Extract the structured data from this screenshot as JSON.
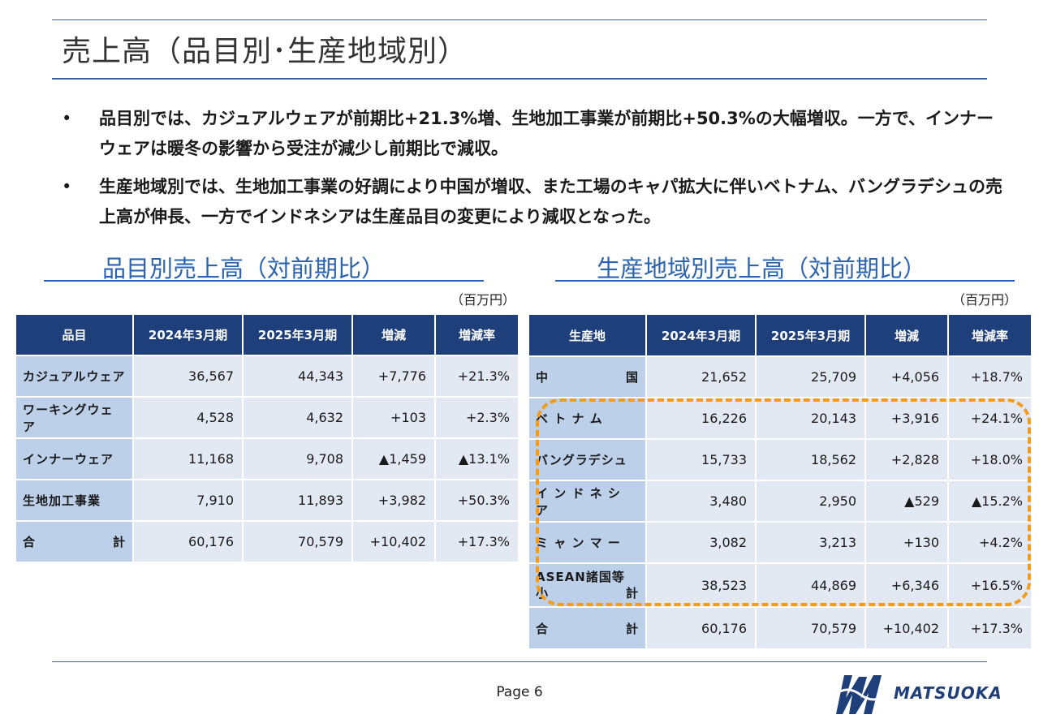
{
  "title": "売上高（品目別･生産地域別）",
  "bullets": [
    "品目別では、カジュアルウェアが前期比+21.3%増、生地加工事業が前期比+50.3%の大幅増収。一方で、インナーウェアは暖冬の影響から受注が減少し前期比で減収。",
    "生産地域別では、生地加工事業の好調により中国が増収、また工場のキャパ拡大に伴いベトナム、バングラデシュの売上高が伸長、一方でインドネシアは生産品目の変更により減収となった。"
  ],
  "bullet_mark": "•",
  "left": {
    "title": "品目別売上高（対前期比）",
    "unit": "（百万円）",
    "headers": [
      "品目",
      "2024年3月期",
      "2025年3月期",
      "増減",
      "増減率"
    ],
    "rows": [
      {
        "label": "カジュアルウェア",
        "v1": "36,567",
        "v2": "44,343",
        "diff": "+7,776",
        "rate": "+21.3%"
      },
      {
        "label": "ワーキングウェア",
        "v1": "4,528",
        "v2": "4,632",
        "diff": "+103",
        "rate": "+2.3%"
      },
      {
        "label": "インナーウェア",
        "v1": "11,168",
        "v2": "9,708",
        "diff": "▲1,459",
        "rate": "▲13.1%"
      },
      {
        "label": "生地加工事業",
        "v1": "7,910",
        "v2": "11,893",
        "diff": "+3,982",
        "rate": "+50.3%"
      }
    ],
    "total": {
      "label_a": "合",
      "label_b": "計",
      "v1": "60,176",
      "v2": "70,579",
      "diff": "+10,402",
      "rate": "+17.3%"
    }
  },
  "right": {
    "title": "生産地域別売上高（対前期比）",
    "unit": "（百万円）",
    "headers": [
      "生産地",
      "2024年3月期",
      "2025年3月期",
      "増減",
      "増減率"
    ],
    "china": {
      "label_a": "中",
      "label_b": "国",
      "v1": "21,652",
      "v2": "25,709",
      "diff": "+4,056",
      "rate": "+18.7%"
    },
    "rows": [
      {
        "label": "ベ ト ナ ム",
        "v1": "16,226",
        "v2": "20,143",
        "diff": "+3,916",
        "rate": "+24.1%"
      },
      {
        "label": "バングラデシュ",
        "v1": "15,733",
        "v2": "18,562",
        "diff": "+2,828",
        "rate": "+18.0%"
      },
      {
        "label": "イ ン ド ネ シ ア",
        "v1": "3,480",
        "v2": "2,950",
        "diff": "▲529",
        "rate": "▲15.2%"
      },
      {
        "label": "ミ ャ ン マ ー",
        "v1": "3,082",
        "v2": "3,213",
        "diff": "+130",
        "rate": "+4.2%"
      }
    ],
    "asean": {
      "label_1": "ASEAN諸国等",
      "label_2a": "小",
      "label_2b": "計",
      "v1": "38,523",
      "v2": "44,869",
      "diff": "+6,346",
      "rate": "+16.5%"
    },
    "total": {
      "label_a": "合",
      "label_b": "計",
      "v1": "60,176",
      "v2": "70,579",
      "diff": "+10,402",
      "rate": "+17.3%"
    }
  },
  "footer": {
    "page": "Page 6",
    "logo_text": "MATSUOKA"
  },
  "colors": {
    "header": "#1f3f7a",
    "label_cell": "#bdd0ea",
    "value_cell": "#e3e9f3",
    "highlight": "#f39c1a",
    "section_title": "#2a63b0"
  }
}
